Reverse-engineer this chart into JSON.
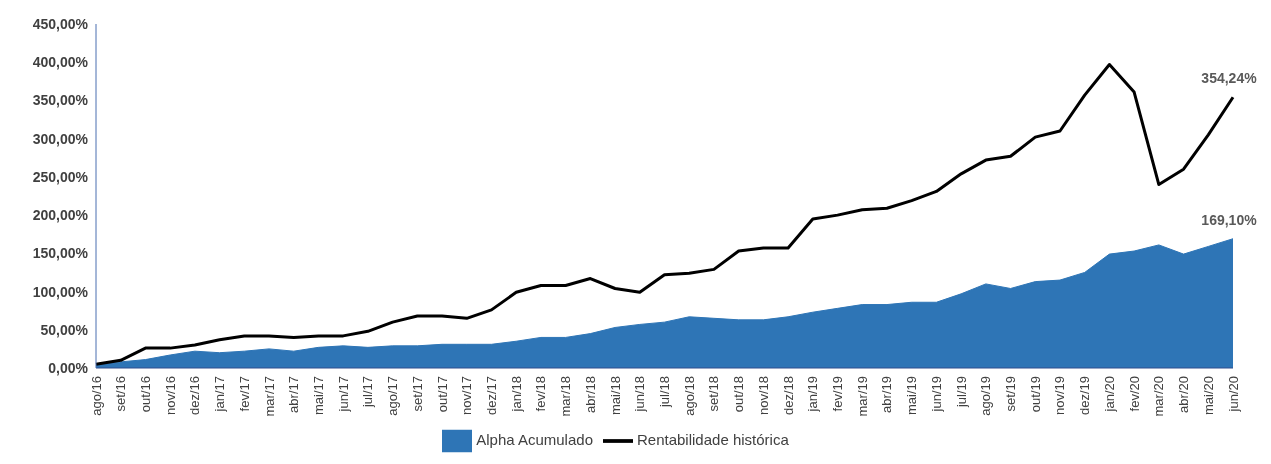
{
  "chart_data": {
    "type": "area",
    "categories": [
      "ago/16",
      "set/16",
      "out/16",
      "nov/16",
      "dez/16",
      "jan/17",
      "fev/17",
      "mar/17",
      "abr/17",
      "mai/17",
      "jun/17",
      "jul/17",
      "ago/17",
      "set/17",
      "out/17",
      "nov/17",
      "dez/17",
      "jan/18",
      "fev/18",
      "mar/18",
      "abr/18",
      "mai/18",
      "jun/18",
      "jul/18",
      "ago/18",
      "set/18",
      "out/18",
      "nov/18",
      "dez/18",
      "jan/19",
      "fev/19",
      "mar/19",
      "abr/19",
      "mai/19",
      "jun/19",
      "jul/19",
      "ago/19",
      "set/19",
      "out/19",
      "nov/19",
      "dez/19",
      "jan/20",
      "fev/20",
      "mar/20",
      "abr/20",
      "mai/20",
      "jun/20"
    ],
    "series": [
      {
        "name": "Alpha Acumulado",
        "color": "#2e75b6",
        "values": [
          5,
          8,
          11,
          17,
          22,
          20,
          22,
          25,
          22,
          27,
          29,
          27,
          29,
          29,
          31,
          31,
          31,
          35,
          40,
          40,
          45,
          53,
          57,
          60,
          67,
          65,
          63,
          63,
          67,
          73,
          78,
          83,
          83,
          86,
          86,
          97,
          110,
          104,
          113,
          115,
          125,
          149,
          153,
          161,
          149,
          159,
          169.1
        ],
        "value_labels": [
          null,
          null,
          null,
          null,
          null,
          null,
          null,
          null,
          null,
          null,
          null,
          null,
          null,
          null,
          null,
          null,
          null,
          null,
          null,
          null,
          null,
          null,
          null,
          null,
          null,
          null,
          null,
          null,
          null,
          null,
          null,
          null,
          null,
          null,
          null,
          null,
          null,
          null,
          null,
          null,
          null,
          null,
          null,
          null,
          null,
          null,
          "169,10%"
        ]
      },
      {
        "name": "Rentabilidade histórica",
        "type": "line",
        "color": "#000000",
        "values": [
          5,
          10,
          26,
          26,
          30,
          37,
          42,
          42,
          40,
          42,
          42,
          48,
          60,
          68,
          68,
          65,
          76,
          99,
          108,
          108,
          117,
          104,
          99,
          122,
          124,
          129,
          153,
          157,
          157,
          195,
          200,
          207,
          209,
          219,
          231,
          254,
          272,
          277,
          302,
          310,
          357,
          397,
          361,
          240,
          260,
          305,
          354.24
        ],
        "value_labels": [
          null,
          null,
          null,
          null,
          null,
          null,
          null,
          null,
          null,
          null,
          null,
          null,
          null,
          null,
          null,
          null,
          null,
          null,
          null,
          null,
          null,
          null,
          null,
          null,
          null,
          null,
          null,
          null,
          null,
          null,
          null,
          null,
          null,
          null,
          null,
          null,
          null,
          null,
          null,
          null,
          null,
          null,
          null,
          null,
          null,
          null,
          "354,24%"
        ]
      }
    ],
    "ylim": [
      0,
      450
    ],
    "yticks": [
      {
        "value": 0,
        "label": "0,00%"
      },
      {
        "value": 50,
        "label": "50,00%"
      },
      {
        "value": 100,
        "label": "100,00%"
      },
      {
        "value": 150,
        "label": "150,00%"
      },
      {
        "value": 200,
        "label": "200,00%"
      },
      {
        "value": 250,
        "label": "250,00%"
      },
      {
        "value": 300,
        "label": "300,00%"
      },
      {
        "value": 350,
        "label": "350,00%"
      },
      {
        "value": 400,
        "label": "400,00%"
      },
      {
        "value": 450,
        "label": "450,00%"
      }
    ],
    "grid": false,
    "legend": "bottom",
    "marker": "none",
    "line_style": "solid"
  }
}
